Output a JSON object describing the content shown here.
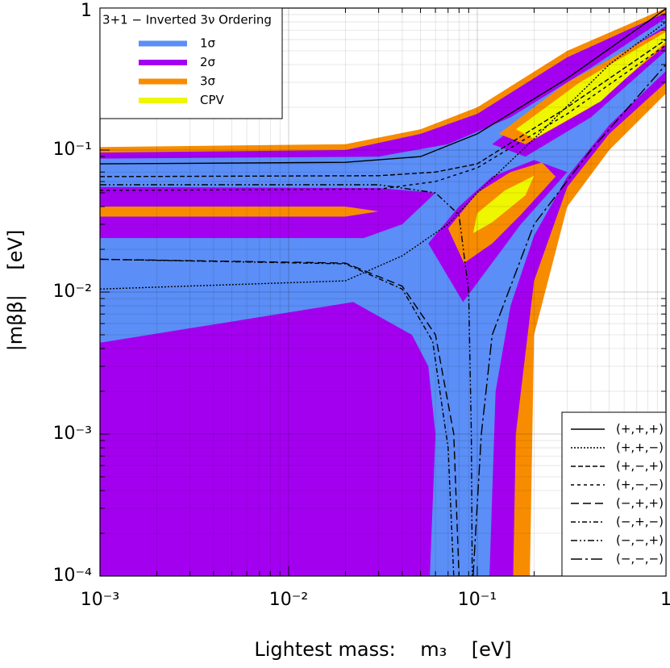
{
  "chart_data": {
    "type": "region",
    "xscale": "log",
    "yscale": "log",
    "xlabel": "Lightest mass:    m₃    [eV]",
    "ylabel": "|mββ|    [eV]",
    "xlim": [
      0.001,
      1
    ],
    "ylim": [
      0.0001,
      1
    ],
    "xticks": [
      {
        "value": 0.001,
        "label": "10⁻³"
      },
      {
        "value": 0.01,
        "label": "10⁻²"
      },
      {
        "value": 0.1,
        "label": "10⁻¹"
      },
      1
    ],
    "yticks": [
      {
        "value": 0.0001,
        "label": "10⁻⁴"
      },
      {
        "value": 0.001,
        "label": "10⁻³"
      },
      {
        "value": 0.01,
        "label": "10⁻²"
      },
      {
        "value": 0.1,
        "label": "10⁻¹"
      },
      1
    ],
    "grid": true,
    "minor_grid": true,
    "legend_title": "3+1 − Inverted 3ν Ordering",
    "legend": [
      {
        "name": "1σ",
        "color": "#5b8ef6"
      },
      {
        "name": "2σ",
        "color": "#a400f0"
      },
      {
        "name": "3σ",
        "color": "#f88c00"
      },
      {
        "name": "CPV",
        "color": "#eef600"
      }
    ],
    "regions": [
      {
        "color": "#f88c00",
        "x": [
          0.001,
          0.02,
          0.05,
          0.1,
          0.3,
          1,
          1,
          0.5,
          0.3,
          0.2,
          0.19,
          0.001
        ],
        "values": [
          0.105,
          0.11,
          0.14,
          0.2,
          0.5,
          1,
          0.25,
          0.1,
          0.04,
          0.005,
          0.0001,
          0.0001
        ]
      },
      {
        "color": "#a400f0",
        "x": [
          0.001,
          0.02,
          0.05,
          0.1,
          0.3,
          1,
          1,
          0.5,
          0.3,
          0.2,
          0.16,
          0.155,
          0.001
        ],
        "values": [
          0.096,
          0.1,
          0.13,
          0.18,
          0.45,
          0.93,
          0.3,
          0.13,
          0.055,
          0.012,
          0.001,
          0.0001,
          0.0001
        ]
      },
      {
        "color": "#5b8ef6",
        "x": [
          0.001,
          0.03,
          0.07,
          0.15,
          0.4,
          1,
          1,
          0.5,
          0.3,
          0.2,
          0.15,
          0.125,
          0.116,
          0.056,
          0.06,
          0.055,
          0.045,
          0.022,
          0.001
        ],
        "values": [
          0.087,
          0.09,
          0.11,
          0.17,
          0.38,
          0.85,
          0.36,
          0.15,
          0.065,
          0.025,
          0.008,
          0.002,
          0.0001,
          0.0001,
          0.001,
          0.003,
          0.005,
          0.0085,
          0.0044
        ]
      },
      {
        "color": "#a400f0",
        "x": [
          0.001,
          0.03,
          0.06,
          0.04,
          0.025,
          0.001
        ],
        "values": [
          0.055,
          0.054,
          0.05,
          0.03,
          0.024,
          0.024
        ]
      },
      {
        "color": "#f88c00",
        "x": [
          0.001,
          0.02,
          0.03,
          0.02,
          0.001
        ],
        "values": [
          0.04,
          0.04,
          0.037,
          0.034,
          0.034
        ]
      },
      {
        "color": "#a400f0",
        "x": [
          0.084,
          0.055,
          0.08,
          0.12,
          0.2,
          0.3,
          0.17
        ],
        "values": [
          0.0085,
          0.022,
          0.04,
          0.065,
          0.085,
          0.07,
          0.03
        ]
      },
      {
        "color": "#f88c00",
        "x": [
          0.085,
          0.07,
          0.1,
          0.15,
          0.22,
          0.26,
          0.17,
          0.12
        ],
        "values": [
          0.016,
          0.028,
          0.05,
          0.07,
          0.082,
          0.065,
          0.035,
          0.022
        ]
      },
      {
        "color": "#eef600",
        "x": [
          0.095,
          0.1,
          0.14,
          0.2,
          0.18,
          0.12
        ],
        "values": [
          0.026,
          0.036,
          0.052,
          0.066,
          0.048,
          0.031
        ]
      },
      {
        "color": "#a400f0",
        "x": [
          0.12,
          0.3,
          1,
          1,
          0.4,
          0.18
        ],
        "values": [
          0.11,
          0.28,
          0.75,
          0.5,
          0.17,
          0.09
        ]
      },
      {
        "color": "#f88c00",
        "x": [
          0.13,
          0.3,
          1,
          1,
          0.4,
          0.18
        ],
        "values": [
          0.13,
          0.3,
          0.72,
          0.55,
          0.2,
          0.11
        ]
      },
      {
        "color": "#eef600",
        "x": [
          0.16,
          0.35,
          1,
          1,
          0.45,
          0.2
        ],
        "values": [
          0.14,
          0.3,
          0.68,
          0.58,
          0.22,
          0.12
        ]
      }
    ],
    "lines": [
      {
        "name": "(+,+,+)",
        "dash": "none",
        "x": [
          0.001,
          0.02,
          0.05,
          0.1,
          0.3,
          1
        ],
        "values": [
          0.08,
          0.082,
          0.09,
          0.13,
          0.32,
          0.99
        ]
      },
      {
        "name": "(+,+,−)",
        "dash": "2,2",
        "x": [
          0.001,
          0.02,
          0.04,
          0.07,
          0.1,
          0.2,
          0.5,
          1
        ],
        "values": [
          0.0105,
          0.012,
          0.018,
          0.03,
          0.05,
          0.12,
          0.4,
          0.8
        ]
      },
      {
        "name": "(+,−,+)",
        "dash": "6,3",
        "x": [
          0.001,
          0.03,
          0.06,
          0.1,
          0.3,
          1
        ],
        "values": [
          0.065,
          0.066,
          0.07,
          0.08,
          0.2,
          0.6
        ]
      },
      {
        "name": "(+,−,−)",
        "dash": "4,4",
        "x": [
          0.001,
          0.03,
          0.06,
          0.1,
          0.3,
          1
        ],
        "values": [
          0.052,
          0.053,
          0.06,
          0.075,
          0.18,
          0.55
        ]
      },
      {
        "name": "(−,+,+)",
        "dash": "10,5",
        "x": [
          0.001,
          0.02,
          0.04,
          0.06,
          0.075,
          0.08
        ],
        "values": [
          0.017,
          0.016,
          0.011,
          0.005,
          0.001,
          0.0001
        ]
      },
      {
        "name": "(−,+,−)",
        "dash": "6,3,2,3",
        "x": [
          0.001,
          0.02,
          0.04,
          0.058,
          0.07,
          0.075
        ],
        "values": [
          0.017,
          0.0158,
          0.0105,
          0.0045,
          0.0008,
          0.0001
        ]
      },
      {
        "name": "(−,−,+)",
        "dash": "8,3,2,3,2,3",
        "x": [
          0.001,
          0.03,
          0.06,
          0.08,
          0.09,
          0.093,
          0.094
        ],
        "values": [
          0.057,
          0.057,
          0.05,
          0.035,
          0.01,
          0.001,
          0.0001
        ]
      },
      {
        "name": "(−,−,−)",
        "dash": "14,4,3,4",
        "x": [
          0.095,
          0.105,
          0.12,
          0.2,
          0.4,
          1
        ],
        "values": [
          0.0001,
          0.001,
          0.005,
          0.03,
          0.1,
          0.4
        ]
      }
    ]
  }
}
